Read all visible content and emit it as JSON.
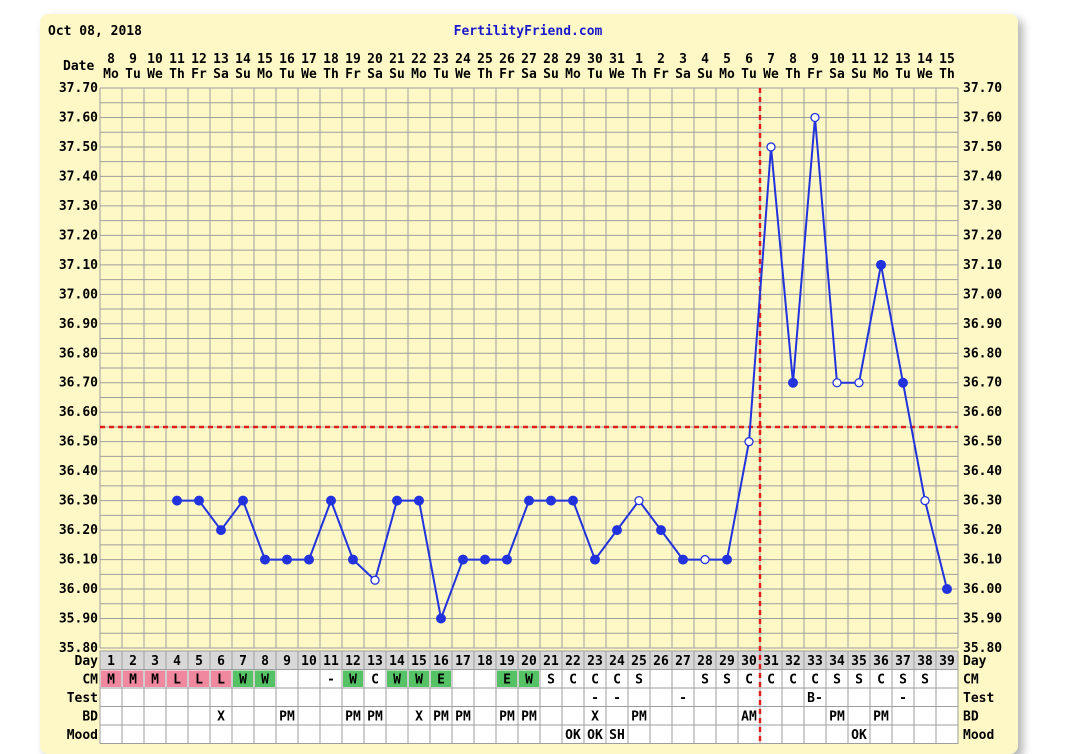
{
  "chart_data": {
    "type": "line",
    "title": "FertilityFriend.com",
    "start_date": "Oct 08, 2018",
    "date_label": "Date",
    "day_row_label": "Day",
    "dates": [
      "8",
      "9",
      "10",
      "11",
      "12",
      "13",
      "14",
      "15",
      "16",
      "17",
      "18",
      "19",
      "20",
      "21",
      "22",
      "23",
      "24",
      "25",
      "26",
      "27",
      "28",
      "29",
      "30",
      "31",
      "1",
      "2",
      "3",
      "4",
      "5",
      "6",
      "7",
      "8",
      "9",
      "10",
      "11",
      "12",
      "13",
      "14",
      "15"
    ],
    "weekdays": [
      "Mo",
      "Tu",
      "We",
      "Th",
      "Fr",
      "Sa",
      "Su",
      "Mo",
      "Tu",
      "We",
      "Th",
      "Fr",
      "Sa",
      "Su",
      "Mo",
      "Tu",
      "We",
      "Th",
      "Fr",
      "Sa",
      "Su",
      "Mo",
      "Tu",
      "We",
      "Th",
      "Fr",
      "Sa",
      "Su",
      "Mo",
      "Tu",
      "We",
      "Th",
      "Fr",
      "Sa",
      "Su",
      "Mo",
      "Tu",
      "We",
      "Th"
    ],
    "cycle_days": [
      "1",
      "2",
      "3",
      "4",
      "5",
      "6",
      "7",
      "8",
      "9",
      "10",
      "11",
      "12",
      "13",
      "14",
      "15",
      "16",
      "17",
      "18",
      "19",
      "20",
      "21",
      "22",
      "23",
      "24",
      "25",
      "26",
      "27",
      "28",
      "29",
      "30",
      "31",
      "32",
      "33",
      "34",
      "35",
      "36",
      "37",
      "38",
      "39"
    ],
    "y_ticks": [
      "37.70",
      "37.60",
      "37.50",
      "37.40",
      "37.30",
      "37.20",
      "37.10",
      "37.00",
      "36.90",
      "36.80",
      "36.70",
      "36.60",
      "36.50",
      "36.40",
      "36.30",
      "36.20",
      "36.10",
      "36.00",
      "35.90",
      "35.80"
    ],
    "ylim": [
      35.8,
      37.7
    ],
    "temperatures": [
      null,
      null,
      null,
      36.3,
      36.3,
      36.2,
      36.3,
      36.1,
      36.1,
      36.1,
      36.3,
      36.1,
      36.03,
      36.3,
      36.3,
      35.9,
      36.1,
      36.1,
      36.1,
      36.3,
      36.3,
      36.3,
      36.1,
      36.2,
      36.3,
      36.2,
      36.1,
      36.1,
      36.1,
      36.5,
      37.5,
      36.7,
      37.6,
      36.7,
      36.7,
      37.1,
      36.7,
      36.3,
      36.0
    ],
    "open_markers": [
      13,
      25,
      28,
      30,
      31,
      33,
      34,
      35,
      38
    ],
    "coverline": 36.55,
    "ovulation_day": 30,
    "colors": {
      "line": "#2233dd",
      "coverline": "#e0201a",
      "grid": "#9e9e9e",
      "header": "#d8d8d8",
      "menstruation": "#f089a0",
      "egg_white": "#55c265",
      "background": "#fdf8c6"
    },
    "rows": [
      {
        "label": "CM",
        "cells": [
          {
            "day": 1,
            "text": "M",
            "fill": "menstruation"
          },
          {
            "day": 2,
            "text": "M",
            "fill": "menstruation"
          },
          {
            "day": 3,
            "text": "M",
            "fill": "menstruation"
          },
          {
            "day": 4,
            "text": "L",
            "fill": "menstruation"
          },
          {
            "day": 5,
            "text": "L",
            "fill": "menstruation"
          },
          {
            "day": 6,
            "text": "L",
            "fill": "menstruation"
          },
          {
            "day": 7,
            "text": "W",
            "fill": "egg_white"
          },
          {
            "day": 8,
            "text": "W",
            "fill": "egg_white"
          },
          {
            "day": 11,
            "text": "-"
          },
          {
            "day": 12,
            "text": "W",
            "fill": "egg_white"
          },
          {
            "day": 13,
            "text": "C"
          },
          {
            "day": 14,
            "text": "W",
            "fill": "egg_white"
          },
          {
            "day": 15,
            "text": "W",
            "fill": "egg_white"
          },
          {
            "day": 16,
            "text": "E",
            "fill": "egg_white"
          },
          {
            "day": 19,
            "text": "E",
            "fill": "egg_white"
          },
          {
            "day": 20,
            "text": "W",
            "fill": "egg_white"
          },
          {
            "day": 21,
            "text": "S"
          },
          {
            "day": 22,
            "text": "C"
          },
          {
            "day": 23,
            "text": "C"
          },
          {
            "day": 24,
            "text": "C"
          },
          {
            "day": 25,
            "text": "S"
          },
          {
            "day": 28,
            "text": "S"
          },
          {
            "day": 29,
            "text": "S"
          },
          {
            "day": 30,
            "text": "C"
          },
          {
            "day": 31,
            "text": "C"
          },
          {
            "day": 32,
            "text": "C"
          },
          {
            "day": 33,
            "text": "C"
          },
          {
            "day": 34,
            "text": "S"
          },
          {
            "day": 35,
            "text": "S"
          },
          {
            "day": 36,
            "text": "C"
          },
          {
            "day": 37,
            "text": "S"
          },
          {
            "day": 38,
            "text": "S"
          }
        ]
      },
      {
        "label": "Test",
        "cells": [
          {
            "day": 23,
            "text": "-"
          },
          {
            "day": 24,
            "text": "-"
          },
          {
            "day": 27,
            "text": "-"
          },
          {
            "day": 33,
            "text": "B-"
          },
          {
            "day": 37,
            "text": "-"
          }
        ]
      },
      {
        "label": "BD",
        "cells": [
          {
            "day": 6,
            "text": "X"
          },
          {
            "day": 9,
            "text": "PM"
          },
          {
            "day": 12,
            "text": "PM"
          },
          {
            "day": 13,
            "text": "PM"
          },
          {
            "day": 15,
            "text": "X"
          },
          {
            "day": 16,
            "text": "PM"
          },
          {
            "day": 17,
            "text": "PM"
          },
          {
            "day": 19,
            "text": "PM"
          },
          {
            "day": 20,
            "text": "PM"
          },
          {
            "day": 23,
            "text": "X"
          },
          {
            "day": 25,
            "text": "PM"
          },
          {
            "day": 30,
            "text": "AM"
          },
          {
            "day": 34,
            "text": "PM"
          },
          {
            "day": 36,
            "text": "PM"
          }
        ]
      },
      {
        "label": "Mood",
        "cells": [
          {
            "day": 22,
            "text": "OK"
          },
          {
            "day": 23,
            "text": "OK"
          },
          {
            "day": 24,
            "text": "SH"
          },
          {
            "day": 35,
            "text": "OK"
          }
        ]
      }
    ]
  }
}
